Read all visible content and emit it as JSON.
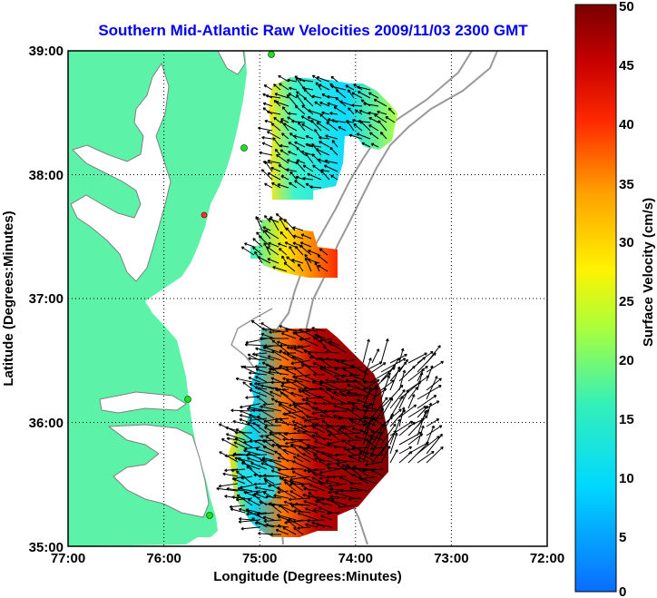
{
  "title": "Southern Mid-Atlantic Raw Velocities 2009/11/03 2300 GMT",
  "xlabel": "Longitude (Degrees:Minutes)",
  "ylabel": "Latitude (Degrees:Minutes)",
  "x_ticks": [
    "77:00",
    "76:00",
    "75:00",
    "74:00",
    "73:00",
    "72:00"
  ],
  "y_ticks": [
    "39:00",
    "38:00",
    "37:00",
    "36:00",
    "35:00"
  ],
  "colorbar": {
    "label": "Surface Velocity (cm/s)",
    "ticks": [
      "0",
      "5",
      "10",
      "15",
      "20",
      "25",
      "30",
      "35",
      "40",
      "45",
      "50"
    ],
    "range": [
      0,
      50
    ],
    "unit": "cm/s"
  },
  "chart_data": {
    "type": "map",
    "x_range": [
      -77,
      -72
    ],
    "y_range": [
      35,
      39
    ],
    "grid": "dotted",
    "land_color": "#5cf2a8",
    "coast_color": "#808080",
    "station_color": "#22dd22"
  }
}
